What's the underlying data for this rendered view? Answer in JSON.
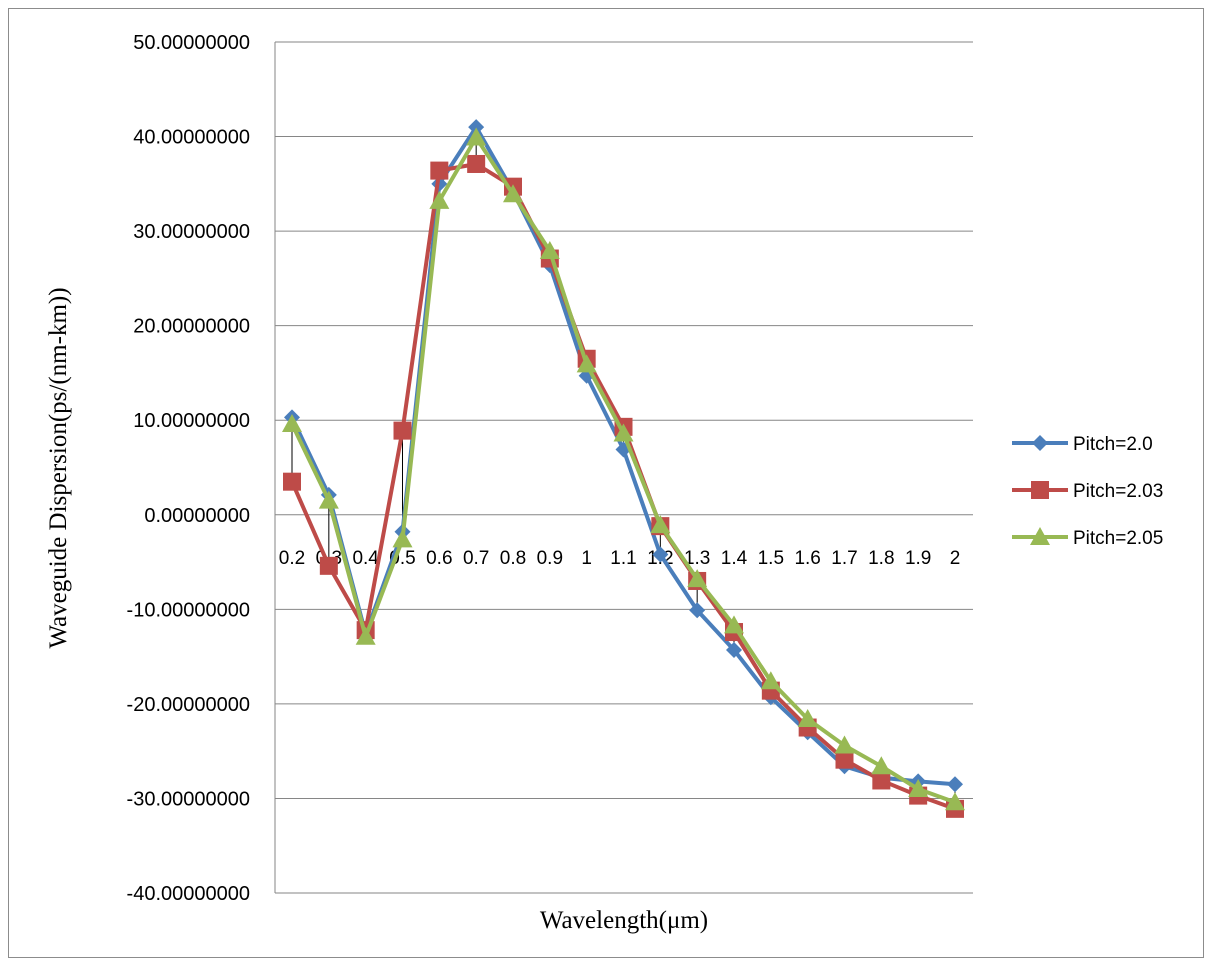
{
  "chart_data": {
    "type": "line",
    "title": "",
    "xlabel": "Wavelength(μm)",
    "ylabel": "Waveguide Dispersion(ps/(nm-km))",
    "ylim": [
      -40,
      50
    ],
    "y_tick_step": 10,
    "y_tick_labels": [
      "50.00000000",
      "40.00000000",
      "30.00000000",
      "20.00000000",
      "10.00000000",
      "0.00000000",
      "-10.00000000",
      "-20.00000000",
      "-30.00000000",
      "-40.00000000"
    ],
    "categories": [
      "0.2",
      "0.3",
      "0.4",
      "0.5",
      "0.6",
      "0.7",
      "0.8",
      "0.9",
      "1",
      "1.1",
      "1.2",
      "1.3",
      "1.4",
      "1.5",
      "1.6",
      "1.7",
      "1.8",
      "1.9",
      "2"
    ],
    "grid": true,
    "legend_position": "right",
    "series": [
      {
        "name": "Pitch=2.0",
        "color": "#4a7ebb",
        "marker": "diamond",
        "values": [
          10.3,
          2.1,
          -12.6,
          -1.8,
          35.0,
          41.0,
          34.2,
          26.4,
          14.7,
          6.9,
          -4.2,
          -10.1,
          -14.3,
          -19.3,
          -23.0,
          -26.6,
          -27.8,
          -28.2,
          -28.5
        ]
      },
      {
        "name": "Pitch=2.03",
        "color": "#be4b48",
        "marker": "square",
        "values": [
          3.5,
          -5.4,
          -12.2,
          8.9,
          36.4,
          37.1,
          34.7,
          27.1,
          16.5,
          9.3,
          -1.2,
          -7.0,
          -12.4,
          -18.6,
          -22.5,
          -25.9,
          -28.1,
          -29.7,
          -31.1
        ]
      },
      {
        "name": "Pitch=2.05",
        "color": "#98b954",
        "marker": "triangle",
        "values": [
          9.6,
          1.5,
          -12.9,
          -2.6,
          33.2,
          39.9,
          33.9,
          27.9,
          15.9,
          8.6,
          -1.1,
          -6.8,
          -11.7,
          -17.6,
          -21.6,
          -24.4,
          -26.6,
          -29.0,
          -30.4
        ]
      }
    ]
  }
}
